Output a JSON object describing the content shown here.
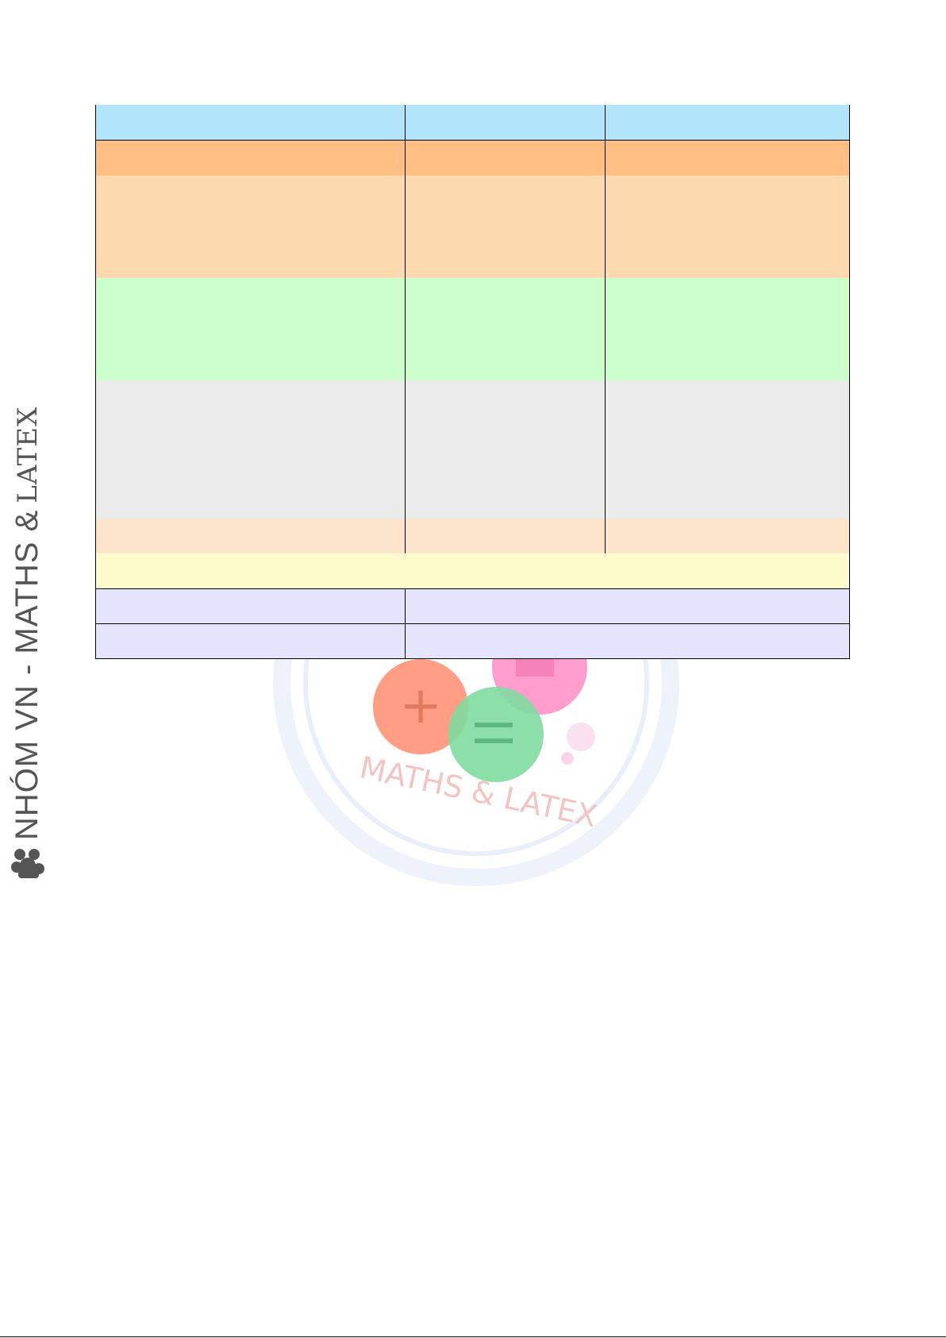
{
  "brand": {
    "side_text": "NHÓM VN - MATHS & ",
    "latex": "LATEX",
    "watermark_text": "MATHS & LATEX"
  },
  "table": {
    "rows": [
      {
        "cells": [
          "",
          "",
          ""
        ]
      },
      {
        "cells": [
          "",
          "",
          ""
        ]
      },
      {
        "cells": [
          "",
          "",
          ""
        ]
      },
      {
        "cells": [
          "",
          "",
          ""
        ]
      },
      {
        "cells": [
          "",
          "",
          ""
        ]
      },
      {
        "cells": [
          "",
          "",
          ""
        ]
      },
      {
        "cells": [
          ""
        ]
      },
      {
        "cells": [
          "",
          ""
        ]
      },
      {
        "cells": [
          "",
          ""
        ]
      }
    ]
  },
  "colors": {
    "header_blue": "#b3e5fa",
    "orange": "#ffbe82",
    "peach": "#fdd9b0",
    "green": "#ccffcc",
    "gray": "#ebebeb",
    "light_peach": "#fde5cc",
    "yellow": "#fefbcc",
    "lavender": "#e4e4fc"
  }
}
